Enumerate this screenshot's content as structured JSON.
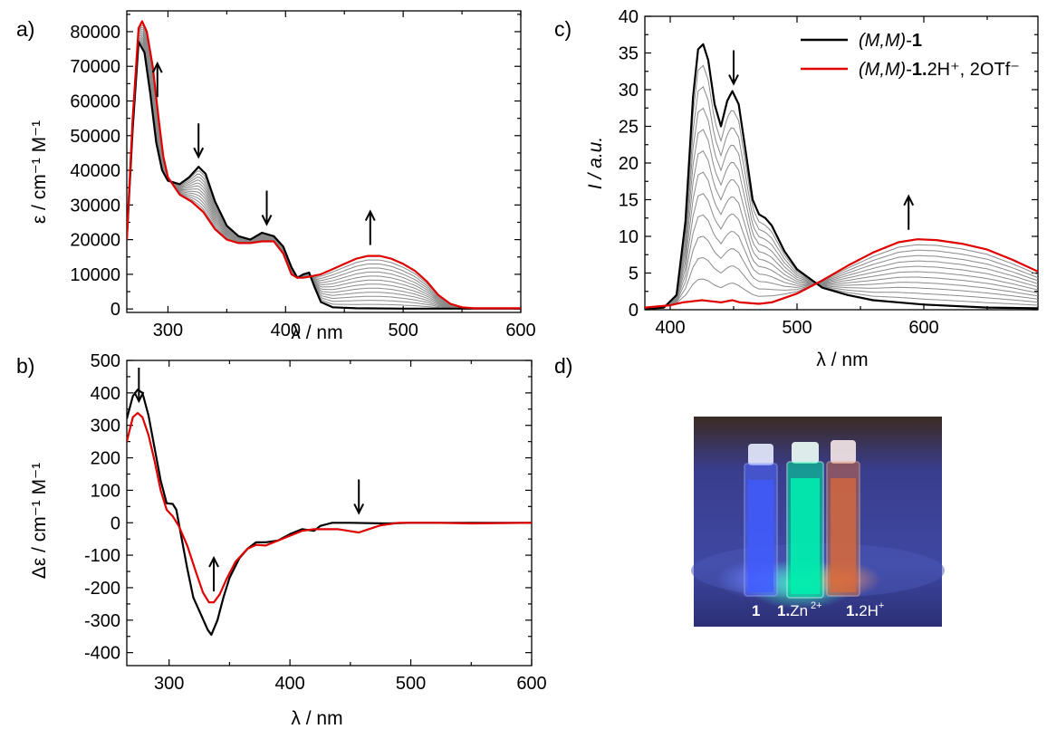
{
  "panel_labels": [
    "a)",
    "b)",
    "c)",
    "d)"
  ],
  "chart_data": [
    {
      "id": "a",
      "type": "line",
      "xlabel": "λ / nm",
      "ylabel": "ε / cm⁻¹ M⁻¹",
      "xlim": [
        265,
        600
      ],
      "ylim": [
        -1000,
        86000
      ],
      "xticks": [
        300,
        400,
        500,
        600
      ],
      "yticks": [
        0,
        10000,
        20000,
        30000,
        40000,
        50000,
        60000,
        70000,
        80000
      ],
      "xtick_labels": [
        "300",
        "400",
        "500",
        "600"
      ],
      "ytick_labels": [
        "0",
        "10000",
        "20000",
        "30000",
        "40000",
        "50000",
        "60000",
        "70000",
        "80000"
      ],
      "intermediate_count": 12,
      "arrows": [
        {
          "x": 291,
          "dir": "up"
        },
        {
          "x": 326,
          "dir": "down"
        },
        {
          "x": 384,
          "dir": "down"
        },
        {
          "x": 472,
          "dir": "up"
        }
      ],
      "series": [
        {
          "role": "start",
          "color": "#000000",
          "points": [
            [
              265,
              20000
            ],
            [
              270,
              52000
            ],
            [
              275,
              77000
            ],
            [
              280,
              74000
            ],
            [
              285,
              62000
            ],
            [
              290,
              48000
            ],
            [
              295,
              40000
            ],
            [
              300,
              37000
            ],
            [
              310,
              36000
            ],
            [
              318,
              38000
            ],
            [
              326,
              41000
            ],
            [
              332,
              39000
            ],
            [
              340,
              31000
            ],
            [
              350,
              24000
            ],
            [
              360,
              21000
            ],
            [
              370,
              20000
            ],
            [
              380,
              22000
            ],
            [
              390,
              21000
            ],
            [
              398,
              18000
            ],
            [
              405,
              12000
            ],
            [
              410,
              9000
            ],
            [
              415,
              10000
            ],
            [
              420,
              10500
            ],
            [
              425,
              6000
            ],
            [
              430,
              2000
            ],
            [
              440,
              500
            ],
            [
              460,
              200
            ],
            [
              500,
              100
            ],
            [
              600,
              100
            ]
          ]
        },
        {
          "role": "end",
          "color": "#e00000",
          "points": [
            [
              265,
              20000
            ],
            [
              270,
              55000
            ],
            [
              275,
              81000
            ],
            [
              278,
              83000
            ],
            [
              282,
              80000
            ],
            [
              287,
              70000
            ],
            [
              292,
              55000
            ],
            [
              296,
              44000
            ],
            [
              300,
              38000
            ],
            [
              310,
              33000
            ],
            [
              320,
              31000
            ],
            [
              330,
              28000
            ],
            [
              340,
              23000
            ],
            [
              350,
              20000
            ],
            [
              360,
              19000
            ],
            [
              370,
              19000
            ],
            [
              380,
              19500
            ],
            [
              390,
              19500
            ],
            [
              398,
              16000
            ],
            [
              405,
              10000
            ],
            [
              410,
              9000
            ],
            [
              415,
              9000
            ],
            [
              420,
              9300
            ],
            [
              430,
              10000
            ],
            [
              440,
              11500
            ],
            [
              450,
              13000
            ],
            [
              460,
              14500
            ],
            [
              470,
              15300
            ],
            [
              480,
              15300
            ],
            [
              490,
              14500
            ],
            [
              500,
              13000
            ],
            [
              510,
              11000
            ],
            [
              520,
              8000
            ],
            [
              530,
              4000
            ],
            [
              540,
              1500
            ],
            [
              550,
              500
            ],
            [
              560,
              200
            ],
            [
              600,
              200
            ]
          ]
        }
      ]
    },
    {
      "id": "b",
      "type": "line",
      "xlabel": "λ / nm",
      "ylabel": "Δε / cm⁻¹ M⁻¹",
      "xlim": [
        265,
        600
      ],
      "ylim": [
        -440,
        500
      ],
      "xticks": [
        300,
        400,
        500,
        600
      ],
      "yticks": [
        -400,
        -300,
        -200,
        -100,
        0,
        100,
        200,
        300,
        400,
        500
      ],
      "xtick_labels": [
        "300",
        "400",
        "500",
        "600"
      ],
      "ytick_labels": [
        "-400",
        "-300",
        "-200",
        "-100",
        "0",
        "100",
        "200",
        "300",
        "400",
        "500"
      ],
      "arrows": [
        {
          "x": 275,
          "dir": "down"
        },
        {
          "x": 337,
          "dir": "up"
        },
        {
          "x": 457,
          "dir": "down"
        }
      ],
      "series": [
        {
          "role": "start",
          "color": "#000000",
          "points": [
            [
              265,
              320
            ],
            [
              270,
              390
            ],
            [
              274,
              410
            ],
            [
              278,
              400
            ],
            [
              283,
              330
            ],
            [
              288,
              230
            ],
            [
              293,
              130
            ],
            [
              298,
              60
            ],
            [
              303,
              58
            ],
            [
              306,
              40
            ],
            [
              310,
              -40
            ],
            [
              315,
              -140
            ],
            [
              320,
              -230
            ],
            [
              326,
              -280
            ],
            [
              332,
              -330
            ],
            [
              335,
              -345
            ],
            [
              340,
              -300
            ],
            [
              345,
              -230
            ],
            [
              350,
              -170
            ],
            [
              358,
              -110
            ],
            [
              365,
              -80
            ],
            [
              372,
              -60
            ],
            [
              380,
              -60
            ],
            [
              390,
              -55
            ],
            [
              400,
              -35
            ],
            [
              410,
              -20
            ],
            [
              420,
              -25
            ],
            [
              425,
              -10
            ],
            [
              430,
              -5
            ],
            [
              435,
              0
            ],
            [
              450,
              0
            ],
            [
              480,
              -2
            ],
            [
              500,
              0
            ],
            [
              550,
              0
            ],
            [
              600,
              0
            ]
          ]
        },
        {
          "role": "end",
          "color": "#e00000",
          "points": [
            [
              265,
              250
            ],
            [
              270,
              325
            ],
            [
              274,
              338
            ],
            [
              278,
              325
            ],
            [
              283,
              270
            ],
            [
              288,
              190
            ],
            [
              293,
              100
            ],
            [
              298,
              40
            ],
            [
              303,
              20
            ],
            [
              308,
              -10
            ],
            [
              315,
              -70
            ],
            [
              322,
              -150
            ],
            [
              328,
              -215
            ],
            [
              333,
              -245
            ],
            [
              337,
              -245
            ],
            [
              342,
              -220
            ],
            [
              348,
              -170
            ],
            [
              355,
              -120
            ],
            [
              365,
              -80
            ],
            [
              372,
              -68
            ],
            [
              380,
              -70
            ],
            [
              390,
              -55
            ],
            [
              400,
              -40
            ],
            [
              410,
              -25
            ],
            [
              420,
              -20
            ],
            [
              430,
              -20
            ],
            [
              440,
              -20
            ],
            [
              450,
              -26
            ],
            [
              457,
              -30
            ],
            [
              465,
              -20
            ],
            [
              475,
              -8
            ],
            [
              490,
              0
            ],
            [
              520,
              0
            ],
            [
              550,
              -2
            ],
            [
              600,
              0
            ]
          ]
        }
      ]
    },
    {
      "id": "c",
      "type": "line",
      "xlabel": "λ / nm",
      "ylabel": "I / a.u.",
      "xlim": [
        380,
        690
      ],
      "ylim": [
        0,
        40
      ],
      "xticks": [
        400,
        500,
        600
      ],
      "yticks": [
        0,
        5,
        10,
        15,
        20,
        25,
        30,
        35,
        40
      ],
      "xtick_labels": [
        "400",
        "500",
        "600"
      ],
      "ytick_labels": [
        "0",
        "5",
        "10",
        "15",
        "20",
        "25",
        "30",
        "35",
        "40"
      ],
      "intermediate_count": 11,
      "arrows": [
        {
          "x": 450,
          "dir": "down"
        },
        {
          "x": 588,
          "dir": "up"
        }
      ],
      "legend": [
        {
          "color": "#000000",
          "italic": "(M,M)",
          "plain": "-",
          "bold": "1",
          "suffix": ""
        },
        {
          "color": "#e00000",
          "italic": "(M,M)",
          "plain": "-",
          "bold": "1.",
          "suffix": "2H⁺, 2OTf⁻"
        }
      ],
      "series": [
        {
          "role": "start",
          "color": "#000000",
          "points": [
            [
              380,
              0.1
            ],
            [
              395,
              0.3
            ],
            [
              405,
              2
            ],
            [
              412,
              12
            ],
            [
              418,
              29
            ],
            [
              422,
              35.5
            ],
            [
              426,
              36.2
            ],
            [
              430,
              34
            ],
            [
              435,
              28
            ],
            [
              440,
              25
            ],
            [
              445,
              28.5
            ],
            [
              449,
              29.8
            ],
            [
              454,
              28
            ],
            [
              460,
              21
            ],
            [
              465,
              15
            ],
            [
              470,
              13
            ],
            [
              475,
              12.5
            ],
            [
              480,
              11.5
            ],
            [
              490,
              8
            ],
            [
              500,
              5.5
            ],
            [
              520,
              3
            ],
            [
              540,
              2
            ],
            [
              560,
              1.3
            ],
            [
              600,
              0.7
            ],
            [
              650,
              0.3
            ],
            [
              690,
              0.2
            ]
          ]
        },
        {
          "role": "end",
          "color": "#e00000",
          "points": [
            [
              380,
              0.3
            ],
            [
              400,
              0.6
            ],
            [
              410,
              1
            ],
            [
              420,
              1.2
            ],
            [
              425,
              1.3
            ],
            [
              430,
              1.2
            ],
            [
              440,
              1.0
            ],
            [
              449,
              1.3
            ],
            [
              455,
              1.0
            ],
            [
              470,
              0.8
            ],
            [
              480,
              1.0
            ],
            [
              500,
              2.2
            ],
            [
              520,
              4
            ],
            [
              540,
              6
            ],
            [
              560,
              7.8
            ],
            [
              580,
              9.2
            ],
            [
              595,
              9.6
            ],
            [
              610,
              9.5
            ],
            [
              630,
              9
            ],
            [
              650,
              8.2
            ],
            [
              670,
              6.8
            ],
            [
              690,
              5.2
            ]
          ]
        }
      ]
    }
  ],
  "photo": {
    "labels": [
      {
        "bold": "1",
        "plain": "",
        "sup": ""
      },
      {
        "bold": "1.",
        "plain": "Zn",
        "sup": "2+"
      },
      {
        "bold": "1.",
        "plain": "2H",
        "sup": "+"
      }
    ],
    "vial_colors": [
      "#3f5bff",
      "#00e0a0",
      "#d86a3a"
    ],
    "background": "#2b2f7a"
  }
}
